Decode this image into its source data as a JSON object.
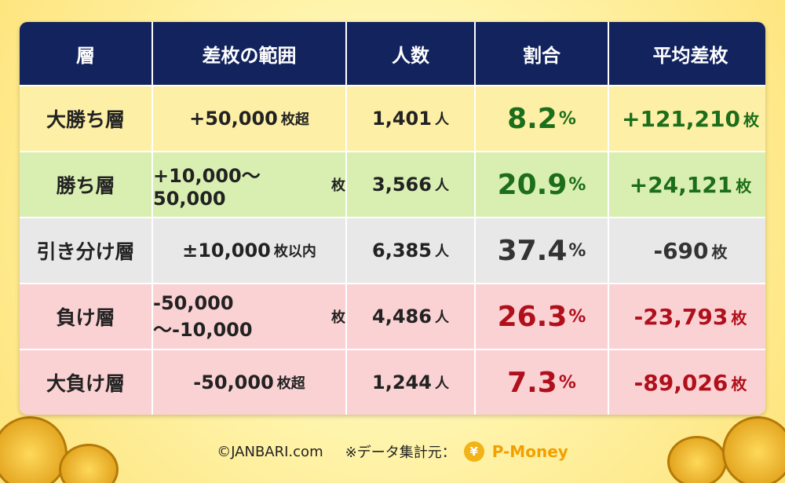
{
  "table": {
    "header": [
      "層",
      "差枚の範囲",
      "人数",
      "割合",
      "平均差枚"
    ],
    "rows": [
      {
        "layer": "大勝ち層",
        "range": [
          "+50,000",
          "枚超"
        ],
        "count": [
          "1,401",
          "人"
        ],
        "share": [
          "8.2",
          "%"
        ],
        "avg": [
          "+121,210",
          "枚"
        ]
      },
      {
        "layer": "勝ち層",
        "range": [
          "+10,000～50,000",
          "枚"
        ],
        "count": [
          "3,566",
          "人"
        ],
        "share": [
          "20.9",
          "%"
        ],
        "avg": [
          "+24,121",
          "枚"
        ]
      },
      {
        "layer": "引き分け層",
        "range": [
          "±10,000",
          "枚以内"
        ],
        "count": [
          "6,385",
          "人"
        ],
        "share": [
          "37.4",
          "%"
        ],
        "avg": [
          "-690",
          "枚"
        ]
      },
      {
        "layer": "負け層",
        "range": [
          "-50,000～-10,000",
          "枚"
        ],
        "count": [
          "4,486",
          "人"
        ],
        "share": [
          "26.3",
          "%"
        ],
        "avg": [
          "-23,793",
          "枚"
        ]
      },
      {
        "layer": "大負け層",
        "range": [
          "-50,000",
          "枚超"
        ],
        "count": [
          "1,244",
          "人"
        ],
        "share": [
          "7.3",
          "%"
        ],
        "avg": [
          "-89,026",
          "枚"
        ]
      }
    ]
  },
  "footer": {
    "copyright": "©JANBARI.com",
    "source_label": "※データ集計元：",
    "logo_mark": "¥",
    "logo_text": "P-Money"
  }
}
